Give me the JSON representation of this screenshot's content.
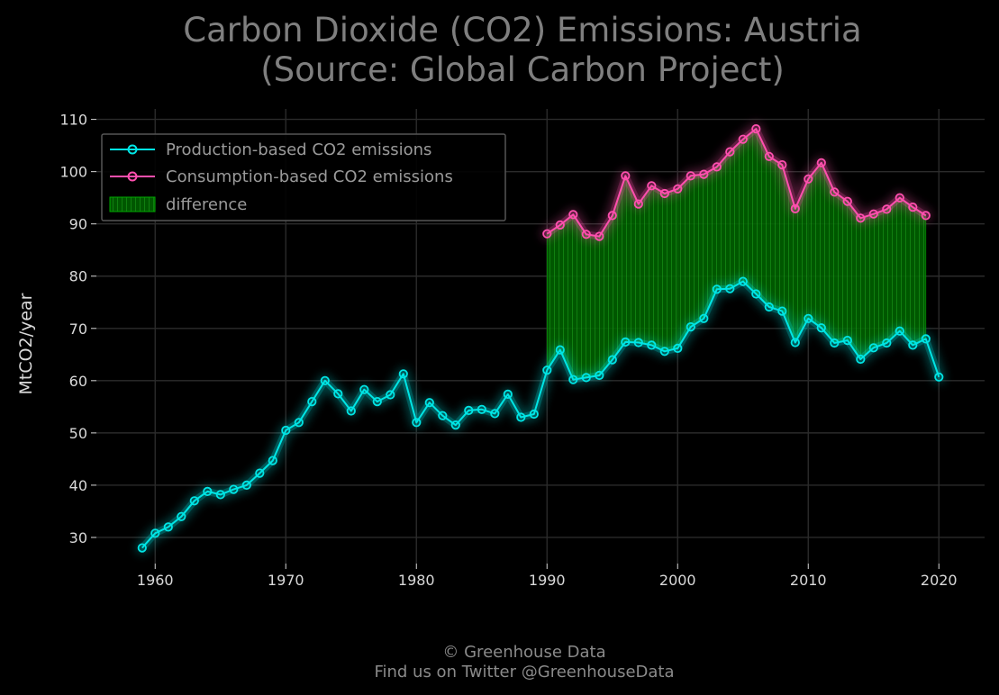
{
  "chart_data": {
    "type": "line",
    "title": "Carbon Dioxide (CO2) Emissions: Austria",
    "subtitle": "(Source: Global Carbon Project)",
    "xlabel": "",
    "ylabel": "MtCO2/year",
    "xlim": [
      1955.5,
      2023.5
    ],
    "ylim": [
      25,
      112
    ],
    "x_ticks": [
      1960,
      1970,
      1980,
      1990,
      2000,
      2010,
      2020
    ],
    "y_ticks": [
      30,
      40,
      50,
      60,
      70,
      80,
      90,
      100,
      110
    ],
    "grid": true,
    "legend_position": "top-left",
    "series": [
      {
        "name": "Production-based CO2 emissions",
        "color": "#00e5e5",
        "x": [
          1959,
          1960,
          1961,
          1962,
          1963,
          1964,
          1965,
          1966,
          1967,
          1968,
          1969,
          1970,
          1971,
          1972,
          1973,
          1974,
          1975,
          1976,
          1977,
          1978,
          1979,
          1980,
          1981,
          1982,
          1983,
          1984,
          1985,
          1986,
          1987,
          1988,
          1989,
          1990,
          1991,
          1992,
          1993,
          1994,
          1995,
          1996,
          1997,
          1998,
          1999,
          2000,
          2001,
          2002,
          2003,
          2004,
          2005,
          2006,
          2007,
          2008,
          2009,
          2010,
          2011,
          2012,
          2013,
          2014,
          2015,
          2016,
          2017,
          2018,
          2019,
          2020
        ],
        "values": [
          28.0,
          30.8,
          32.0,
          34.0,
          37.0,
          38.8,
          38.2,
          39.2,
          40.0,
          42.3,
          44.7,
          50.5,
          52.0,
          56.0,
          60.0,
          57.5,
          54.2,
          58.3,
          56.0,
          57.3,
          61.3,
          52.0,
          55.8,
          53.3,
          51.5,
          54.3,
          54.5,
          53.7,
          57.4,
          53.0,
          53.6,
          62.0,
          65.9,
          60.2,
          60.6,
          61.0,
          64.0,
          67.4,
          67.3,
          66.8,
          65.6,
          66.2,
          70.3,
          71.9,
          77.5,
          77.6,
          79.0,
          76.6,
          74.1,
          73.3,
          67.3,
          71.9,
          70.1,
          67.2,
          67.7,
          64.1,
          66.3,
          67.2,
          69.5,
          66.8,
          68.0,
          60.7
        ]
      },
      {
        "name": "Consumption-based CO2 emissions",
        "color": "#ff4fae",
        "x": [
          1990,
          1991,
          1992,
          1993,
          1994,
          1995,
          1996,
          1997,
          1998,
          1999,
          2000,
          2001,
          2002,
          2003,
          2004,
          2005,
          2006,
          2007,
          2008,
          2009,
          2010,
          2011,
          2012,
          2013,
          2014,
          2015,
          2016,
          2017,
          2018,
          2019
        ],
        "values": [
          88.1,
          89.8,
          91.8,
          88.0,
          87.6,
          91.6,
          99.2,
          93.8,
          97.3,
          95.8,
          96.7,
          99.2,
          99.5,
          100.9,
          103.8,
          106.2,
          108.2,
          102.9,
          101.3,
          92.9,
          98.6,
          101.7,
          96.1,
          94.3,
          91.1,
          91.9,
          92.8,
          95.0,
          93.2,
          91.6
        ]
      }
    ],
    "fill_between": {
      "name": "difference",
      "color": "#00cc00",
      "between": [
        "Consumption-based CO2 emissions",
        "Production-based CO2 emissions"
      ]
    }
  },
  "footer": {
    "line1": "© Greenhouse Data",
    "line2": "Find us on Twitter @GreenhouseData"
  }
}
